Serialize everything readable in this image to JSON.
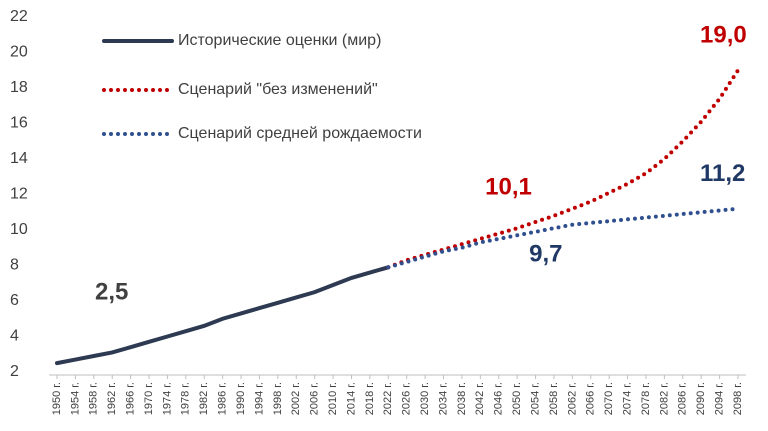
{
  "chart_data": {
    "type": "line",
    "x": [
      {
        "value": 1950,
        "label": "1950 г."
      },
      {
        "value": 1954,
        "label": "1954 г."
      },
      {
        "value": 1958,
        "label": "1958 г."
      },
      {
        "value": 1962,
        "label": "1962 г."
      },
      {
        "value": 1966,
        "label": "1966 г."
      },
      {
        "value": 1970,
        "label": "1970 г."
      },
      {
        "value": 1974,
        "label": "1974 г."
      },
      {
        "value": 1978,
        "label": "1978 г."
      },
      {
        "value": 1982,
        "label": "1982 г."
      },
      {
        "value": 1986,
        "label": "1986 г."
      },
      {
        "value": 1990,
        "label": "1990 г."
      },
      {
        "value": 1994,
        "label": "1994 г."
      },
      {
        "value": 1998,
        "label": "1998 г."
      },
      {
        "value": 2002,
        "label": "2002 г."
      },
      {
        "value": 2006,
        "label": "2006 г."
      },
      {
        "value": 2010,
        "label": "2010 г."
      },
      {
        "value": 2014,
        "label": "2014 г."
      },
      {
        "value": 2018,
        "label": "2018 г."
      },
      {
        "value": 2022,
        "label": "2022 г."
      },
      {
        "value": 2026,
        "label": "2026 г."
      },
      {
        "value": 2030,
        "label": "2030 г."
      },
      {
        "value": 2034,
        "label": "2034 г."
      },
      {
        "value": 2038,
        "label": "2038 г."
      },
      {
        "value": 2042,
        "label": "2042 г."
      },
      {
        "value": 2046,
        "label": "2046 г."
      },
      {
        "value": 2050,
        "label": "2050 г."
      },
      {
        "value": 2054,
        "label": "2054 г."
      },
      {
        "value": 2058,
        "label": "2058 г."
      },
      {
        "value": 2062,
        "label": "2062 г."
      },
      {
        "value": 2066,
        "label": "2066 г."
      },
      {
        "value": 2070,
        "label": "2070 г."
      },
      {
        "value": 2074,
        "label": "2074 г."
      },
      {
        "value": 2078,
        "label": "2078 г."
      },
      {
        "value": 2082,
        "label": "2082 г."
      },
      {
        "value": 2086,
        "label": "2086 г."
      },
      {
        "value": 2090,
        "label": "2090 г."
      },
      {
        "value": 2094,
        "label": "2094 г."
      },
      {
        "value": 2098,
        "label": "2098 г."
      }
    ],
    "xlim": [
      1950,
      2098
    ],
    "ylim": [
      2,
      22
    ],
    "yticks": [
      2,
      4,
      6,
      8,
      10,
      12,
      14,
      16,
      18,
      20,
      22
    ],
    "series": [
      {
        "name": "Исторические оценки (мир)",
        "color": "#2d3a52",
        "style": "solid",
        "label_color": "#404040",
        "values": [
          2.5,
          2.7,
          2.9,
          3.1,
          3.4,
          3.7,
          4.0,
          4.3,
          4.6,
          5.0,
          5.3,
          5.6,
          5.9,
          6.2,
          6.5,
          6.9,
          7.3,
          7.6,
          7.9,
          null,
          null,
          null,
          null,
          null,
          null,
          null,
          null,
          null,
          null,
          null,
          null,
          null,
          null,
          null,
          null,
          null,
          null,
          null
        ],
        "value_labels": [
          "2,5",
          null,
          null,
          null,
          null,
          null,
          null,
          null,
          null,
          null,
          null,
          null,
          null,
          null,
          null,
          null,
          null,
          null,
          null,
          null,
          null,
          null,
          null,
          null,
          null,
          null,
          null,
          null,
          null,
          null,
          null,
          null,
          null,
          null,
          null,
          null,
          null,
          null
        ]
      },
      {
        "name": "Сценарий \"без изменений\"",
        "color": "#c00000",
        "style": "dotted",
        "label_color": "#c00000",
        "values": [
          null,
          null,
          null,
          null,
          null,
          null,
          null,
          null,
          null,
          null,
          null,
          null,
          null,
          null,
          null,
          null,
          null,
          null,
          7.9,
          8.3,
          8.6,
          8.9,
          9.2,
          9.5,
          9.8,
          10.1,
          10.45,
          10.8,
          11.2,
          11.6,
          12.1,
          12.6,
          13.2,
          14.0,
          15.0,
          16.1,
          17.4,
          19.0
        ],
        "value_labels": [
          null,
          null,
          null,
          null,
          null,
          null,
          null,
          null,
          null,
          null,
          null,
          null,
          null,
          null,
          null,
          null,
          null,
          null,
          null,
          null,
          null,
          null,
          null,
          null,
          null,
          "10,1",
          null,
          null,
          null,
          null,
          null,
          null,
          null,
          null,
          null,
          null,
          null,
          "19,0"
        ]
      },
      {
        "name": "Сценарий средней рождаемости",
        "color": "#2f4f8f",
        "style": "dotted",
        "label_color": "#1f3864",
        "values": [
          null,
          null,
          null,
          null,
          null,
          null,
          null,
          null,
          null,
          null,
          null,
          null,
          null,
          null,
          null,
          null,
          null,
          null,
          7.9,
          8.2,
          8.5,
          8.8,
          9.0,
          9.3,
          9.5,
          9.7,
          9.9,
          10.1,
          10.3,
          10.4,
          10.5,
          10.6,
          10.7,
          10.8,
          10.9,
          11.0,
          11.1,
          11.2
        ],
        "value_labels": [
          null,
          null,
          null,
          null,
          null,
          null,
          null,
          null,
          null,
          null,
          null,
          null,
          null,
          null,
          null,
          null,
          null,
          null,
          null,
          null,
          null,
          null,
          null,
          null,
          null,
          "9,7",
          null,
          null,
          null,
          null,
          null,
          null,
          null,
          null,
          null,
          null,
          null,
          "11,2"
        ]
      }
    ]
  }
}
